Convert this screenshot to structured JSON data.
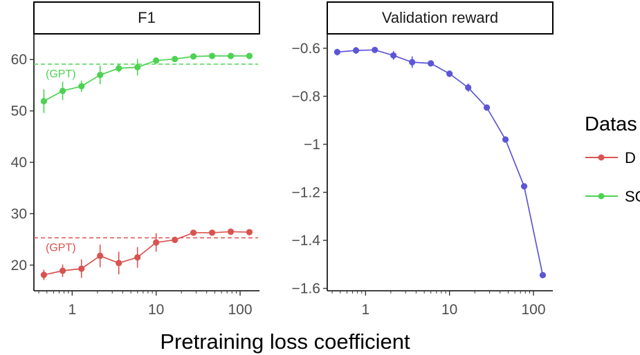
{
  "figure": {
    "xlabel": "Pretraining loss coefficient",
    "legend": {
      "title": "Datas",
      "items": [
        {
          "label": "D",
          "color": "#d9534f"
        },
        {
          "label": "SC",
          "color": "#4dd251"
        }
      ]
    }
  },
  "chart_data": [
    {
      "type": "line",
      "title": "F1",
      "x_scale": "log",
      "xlim": [
        0.35,
        170
      ],
      "x_ticks": [
        1,
        10,
        100
      ],
      "x_tick_labels": [
        "1",
        "10",
        "100"
      ],
      "ylim": [
        15,
        65
      ],
      "y_ticks": [
        20,
        30,
        40,
        50,
        60
      ],
      "y_tick_labels": [
        "20",
        "30",
        "40",
        "50",
        "60"
      ],
      "x": [
        0.46,
        0.77,
        1.29,
        2.15,
        3.59,
        5.99,
        10,
        16.7,
        27.8,
        46.4,
        77.4,
        129
      ],
      "series": [
        {
          "name": "D",
          "color": "#d9534f",
          "values": [
            18.1,
            18.9,
            19.3,
            21.8,
            20.4,
            21.5,
            24.4,
            24.9,
            26.3,
            26.3,
            26.5,
            26.4
          ],
          "errors": [
            1.0,
            1.2,
            1.8,
            2.2,
            2.2,
            2.0,
            1.8,
            0.6,
            0.5,
            0.5,
            0.5,
            0.5
          ]
        },
        {
          "name": "SC",
          "color": "#4dd251",
          "values": [
            51.9,
            53.9,
            54.8,
            57.0,
            58.3,
            58.5,
            59.8,
            60.1,
            60.6,
            60.7,
            60.7,
            60.7
          ],
          "errors": [
            2.3,
            1.8,
            1.1,
            1.8,
            0.8,
            1.6,
            0.6,
            0.4,
            0.3,
            0.3,
            0.3,
            0.3
          ]
        }
      ],
      "reference_lines": [
        {
          "label": "(GPT)",
          "value": 25.3,
          "color": "#d9534f"
        },
        {
          "label": "(GPT)",
          "value": 59.1,
          "color": "#4dd251"
        }
      ]
    },
    {
      "type": "line",
      "title": "Validation reward",
      "x_scale": "log",
      "xlim": [
        0.35,
        170
      ],
      "x_ticks": [
        1,
        10,
        100
      ],
      "x_tick_labels": [
        "1",
        "10",
        "100"
      ],
      "ylim": [
        -1.61,
        -0.54
      ],
      "y_ticks": [
        -0.6,
        -0.8,
        -1.0,
        -1.2,
        -1.4,
        -1.6
      ],
      "y_tick_labels": [
        "−0.6",
        "−0.8",
        "−1",
        "−1.2",
        "−1.4",
        "−1.6"
      ],
      "x": [
        0.46,
        0.77,
        1.29,
        2.15,
        3.59,
        5.99,
        10,
        16.7,
        27.8,
        46.4,
        77.4,
        129
      ],
      "series": [
        {
          "color": "#5b56d6",
          "values": [
            -0.616,
            -0.609,
            -0.607,
            -0.63,
            -0.658,
            -0.663,
            -0.706,
            -0.764,
            -0.847,
            -0.98,
            -1.175,
            -1.545
          ],
          "errors": [
            0.014,
            0.014,
            0.008,
            0.018,
            0.024,
            0.01,
            0.014,
            0.017,
            0.01,
            0.01,
            0.008,
            0.008
          ]
        }
      ]
    }
  ]
}
